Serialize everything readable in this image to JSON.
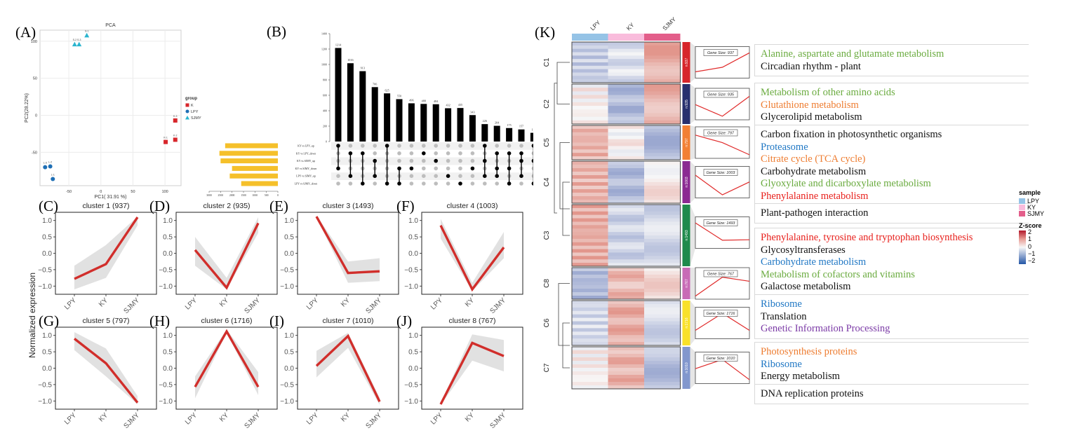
{
  "panels": {
    "A": "(A)",
    "B": "(B)",
    "C": "(C)",
    "D": "(D)",
    "E": "(E)",
    "F": "(F)",
    "G": "(G)",
    "H": "(H)",
    "I": "(I)",
    "J": "(J)",
    "K": "(K)"
  },
  "chart_data": [
    {
      "id": "pca",
      "type": "scatter",
      "title": "PCA",
      "xlabel": "PC1( 31.91 %)",
      "ylabel": "PC2(28.22%)",
      "xlim": [
        -95,
        125
      ],
      "ylim": [
        -95,
        115
      ],
      "xticks": [
        -50,
        0,
        50,
        100
      ],
      "yticks": [
        -50,
        0,
        50,
        100
      ],
      "grid": true,
      "legend": {
        "title": "group",
        "position": "right",
        "entries": [
          {
            "name": "K",
            "color": "#d7262b",
            "shape": "square"
          },
          {
            "name": "LPY",
            "color": "#1f6fb5",
            "shape": "circle"
          },
          {
            "name": "SJMY",
            "color": "#2bb5cf",
            "shape": "triangle"
          }
        ]
      },
      "points": [
        {
          "group": "SJMY",
          "label": "S-1",
          "x": -22,
          "y": 108
        },
        {
          "group": "SJMY",
          "label": "S-2",
          "x": -41,
          "y": 96
        },
        {
          "group": "SJMY",
          "label": "S-3",
          "x": -34,
          "y": 96
        },
        {
          "group": "K",
          "label": "K-3",
          "x": 116,
          "y": -7
        },
        {
          "group": "K",
          "label": "K-1",
          "x": 101,
          "y": -36
        },
        {
          "group": "K",
          "label": "K-2",
          "x": 116,
          "y": -33
        },
        {
          "group": "LPY",
          "label": "L-3",
          "x": -87,
          "y": -70
        },
        {
          "group": "LPY",
          "label": "L-2",
          "x": -79,
          "y": -69
        },
        {
          "group": "LPY",
          "label": "L-1",
          "x": -75,
          "y": -86
        }
      ]
    },
    {
      "id": "upset",
      "type": "bar",
      "title": "",
      "ylim": [
        0,
        1400
      ],
      "yticks": [
        0,
        200,
        400,
        600,
        800,
        1000,
        1200,
        1400
      ],
      "values": [
        1214,
        1016,
        913,
        706,
        625,
        550,
        496,
        488,
        484,
        432,
        435,
        343,
        226,
        204,
        175,
        157,
        113,
        82
      ],
      "sets": [
        "KY vs LPY_up",
        "KY vs LPY_down",
        "KY vs SJMY_up",
        "KY vs SJMY_down",
        "LPY vs SJMY_up",
        "LPY vs SJMY_down"
      ],
      "set_sizes": [
        2300,
        2550,
        2500,
        2000,
        2100,
        1600
      ],
      "set_axis_ticks": [
        3000,
        2500,
        2000,
        1500,
        1000,
        500,
        0
      ],
      "set_bar_color": "#f5c02a",
      "matrix": [
        [
          0,
          3
        ],
        [
          1,
          4
        ],
        [
          1,
          5
        ],
        [
          2,
          4
        ],
        [
          0,
          5
        ],
        [
          3,
          5
        ],
        [
          3
        ],
        [
          1
        ],
        [
          2
        ],
        [
          4
        ],
        [
          5
        ],
        [
          3
        ],
        [
          0,
          2,
          4
        ],
        [
          1,
          3,
          4
        ],
        [
          1,
          3,
          5
        ],
        [
          1,
          2,
          4
        ],
        [
          0,
          2,
          5
        ],
        [
          0,
          3,
          5
        ]
      ]
    },
    {
      "id": "clusters",
      "type": "line",
      "categories": [
        "LPY",
        "KY",
        "SJMY"
      ],
      "ylabel": "Normalized expression",
      "yticks": [
        -1.0,
        -0.5,
        0.0,
        0.5,
        1.0
      ],
      "line_color": "#d12e2b",
      "band_color": "#dcdcdc",
      "series": [
        {
          "name": "cluster 1 (937)",
          "values": [
            -0.78,
            -0.33,
            1.1
          ],
          "lower": [
            -1.1,
            -0.75,
            0.85
          ],
          "upper": [
            -0.38,
            0.25,
            1.12
          ]
        },
        {
          "name": "cluster 2 (935)",
          "values": [
            0.1,
            -1.05,
            0.92
          ],
          "lower": [
            -0.38,
            -1.1,
            0.62
          ],
          "upper": [
            0.5,
            -0.75,
            1.1
          ]
        },
        {
          "name": "cluster 3 (1493)",
          "values": [
            1.12,
            -0.6,
            -0.55
          ],
          "lower": [
            1.1,
            -0.9,
            -0.85
          ],
          "upper": [
            1.15,
            -0.25,
            -0.15
          ]
        },
        {
          "name": "cluster 4 (1003)",
          "values": [
            0.85,
            -1.1,
            0.18
          ],
          "lower": [
            0.45,
            -1.15,
            -0.15
          ],
          "upper": [
            1.05,
            -0.9,
            0.65
          ]
        },
        {
          "name": "cluster 5 (797)",
          "values": [
            0.9,
            0.15,
            -1.05
          ],
          "lower": [
            0.55,
            -0.25,
            -1.1
          ],
          "upper": [
            1.1,
            0.6,
            -0.85
          ]
        },
        {
          "name": "cluster 6 (1716)",
          "values": [
            -0.57,
            1.12,
            -0.57
          ],
          "lower": [
            -0.92,
            1.08,
            -0.82
          ],
          "upper": [
            -0.25,
            1.18,
            -0.12
          ]
        },
        {
          "name": "cluster 7 (1010)",
          "values": [
            0.07,
            0.98,
            -1.02
          ],
          "lower": [
            -0.28,
            0.62,
            -1.12
          ],
          "upper": [
            0.53,
            1.08,
            -0.9
          ]
        },
        {
          "name": "cluster 8 (767)",
          "values": [
            -1.1,
            0.77,
            0.37
          ],
          "lower": [
            -1.12,
            0.23,
            -0.1
          ],
          "upper": [
            -1.05,
            1.03,
            0.86
          ]
        }
      ]
    },
    {
      "id": "heatmap",
      "type": "heatmap",
      "columns": [
        "LPY",
        "KY",
        "SJMY"
      ],
      "column_colors": [
        "#95c3e6",
        "#f9bcdc",
        "#e35e8a"
      ],
      "color_scale": {
        "title": "Z-score",
        "ticks": [
          2,
          1,
          0,
          -1,
          -2
        ],
        "low": "#2456a6",
        "mid": "#f7f7f7",
        "high": "#b2182b"
      },
      "sample_legend_title": "sample",
      "clusters": [
        {
          "label": "C1",
          "n": "n:937",
          "gene_size": "Gene Size: 937",
          "bar_color": "#d7262b",
          "profile": [
            -0.78,
            -0.33,
            1.1
          ],
          "means": [
            -0.7,
            -0.4,
            1.0
          ],
          "pathways": [
            {
              "text": "Alanine, aspartate and glutamate metabolism",
              "color": "#6aab3f"
            },
            {
              "text": "Circadian rhythm - plant",
              "color": "#111111"
            }
          ]
        },
        {
          "label": "C2",
          "n": "n:935",
          "gene_size": "Gene Size: 935",
          "bar_color": "#27306e",
          "profile": [
            0.1,
            -1.05,
            0.92
          ],
          "means": [
            0.1,
            -1.0,
            0.9
          ],
          "pathways": [
            {
              "text": "Metabolism of other amino acids",
              "color": "#6aab3f"
            },
            {
              "text": "Glutathione metabolism",
              "color": "#ee7d31"
            },
            {
              "text": "Glycerolipid metabolism",
              "color": "#111111"
            }
          ]
        },
        {
          "label": "C5",
          "n": "n:797",
          "gene_size": "Gene Size: 797",
          "bar_color": "#f28034",
          "profile": [
            0.9,
            0.15,
            -1.05
          ],
          "means": [
            0.9,
            0.1,
            -1.0
          ],
          "pathways": [
            {
              "text": "Carbon fixation in photosynthetic organisms",
              "color": "#111111"
            },
            {
              "text": "Proteasome",
              "color": "#1f77c4"
            },
            {
              "text": "Citrate cycle (TCA cycle)",
              "color": "#ee7d31"
            },
            {
              "text": "Carbohydrate metabolism",
              "color": "#111111"
            },
            {
              "text": "Glyoxylate and dicarboxylate metabolism",
              "color": "#6aab3f"
            },
            {
              "text": "Phenylalanine metabolism",
              "color": "#e8211d"
            }
          ]
        },
        {
          "label": "C4",
          "n": "n:1003",
          "gene_size": "Gene Size: 1003",
          "bar_color": "#8b2a92",
          "profile": [
            0.85,
            -1.1,
            0.18
          ],
          "means": [
            0.9,
            -1.0,
            0.2
          ],
          "pathways": []
        },
        {
          "label": "C3",
          "n": "n:1493",
          "gene_size": "Gene Size: 1493",
          "bar_color": "#1f8a4c",
          "profile": [
            1.12,
            -0.6,
            -0.55
          ],
          "means": [
            1.0,
            -0.6,
            -0.5
          ],
          "pathways": [
            {
              "text": "Plant-pathogen interaction",
              "color": "#111111"
            }
          ]
        },
        {
          "label": "C8",
          "n": "n:767",
          "gene_size": "Gene Size: 767",
          "bar_color": "#c86bb6",
          "profile": [
            -1.1,
            0.77,
            0.37
          ],
          "means": [
            -1.0,
            0.8,
            0.35
          ],
          "pathways": [
            {
              "text": "Phenylalanine, tyrosine and tryptophan biosynthesis",
              "color": "#e8211d"
            },
            {
              "text": "Glycosyltransferases",
              "color": "#111111"
            },
            {
              "text": "Carbohydrate metabolism",
              "color": "#1f77c4"
            },
            {
              "text": "Metabolism of cofactors and vitamins",
              "color": "#6aab3f"
            },
            {
              "text": "Galactose metabolism",
              "color": "#111111"
            }
          ]
        },
        {
          "label": "C6",
          "n": "n:1716",
          "gene_size": "Gene Size: 1716",
          "bar_color": "#f9e12a",
          "profile": [
            -0.57,
            1.12,
            -0.57
          ],
          "means": [
            -0.5,
            1.0,
            -0.5
          ],
          "pathways": [
            {
              "text": "Ribosome",
              "color": "#1f77c4"
            },
            {
              "text": "Translation",
              "color": "#111111"
            },
            {
              "text": "Genetic Information Processing",
              "color": "#7b3aa6"
            }
          ]
        },
        {
          "label": "C7",
          "n": "n:1010",
          "gene_size": "Gene Size: 1010",
          "bar_color": "#8297cd",
          "profile": [
            0.07,
            0.98,
            -1.02
          ],
          "means": [
            0.1,
            0.9,
            -0.9
          ],
          "pathways": [
            {
              "text": "Photosynthesis proteins",
              "color": "#ee7d31"
            },
            {
              "text": "Ribosome",
              "color": "#1f77c4"
            },
            {
              "text": "Energy metabolism",
              "color": "#111111"
            }
          ]
        }
      ],
      "extra_pathways": [
        {
          "text": "DNA replication proteins",
          "color": "#111111"
        }
      ]
    }
  ]
}
